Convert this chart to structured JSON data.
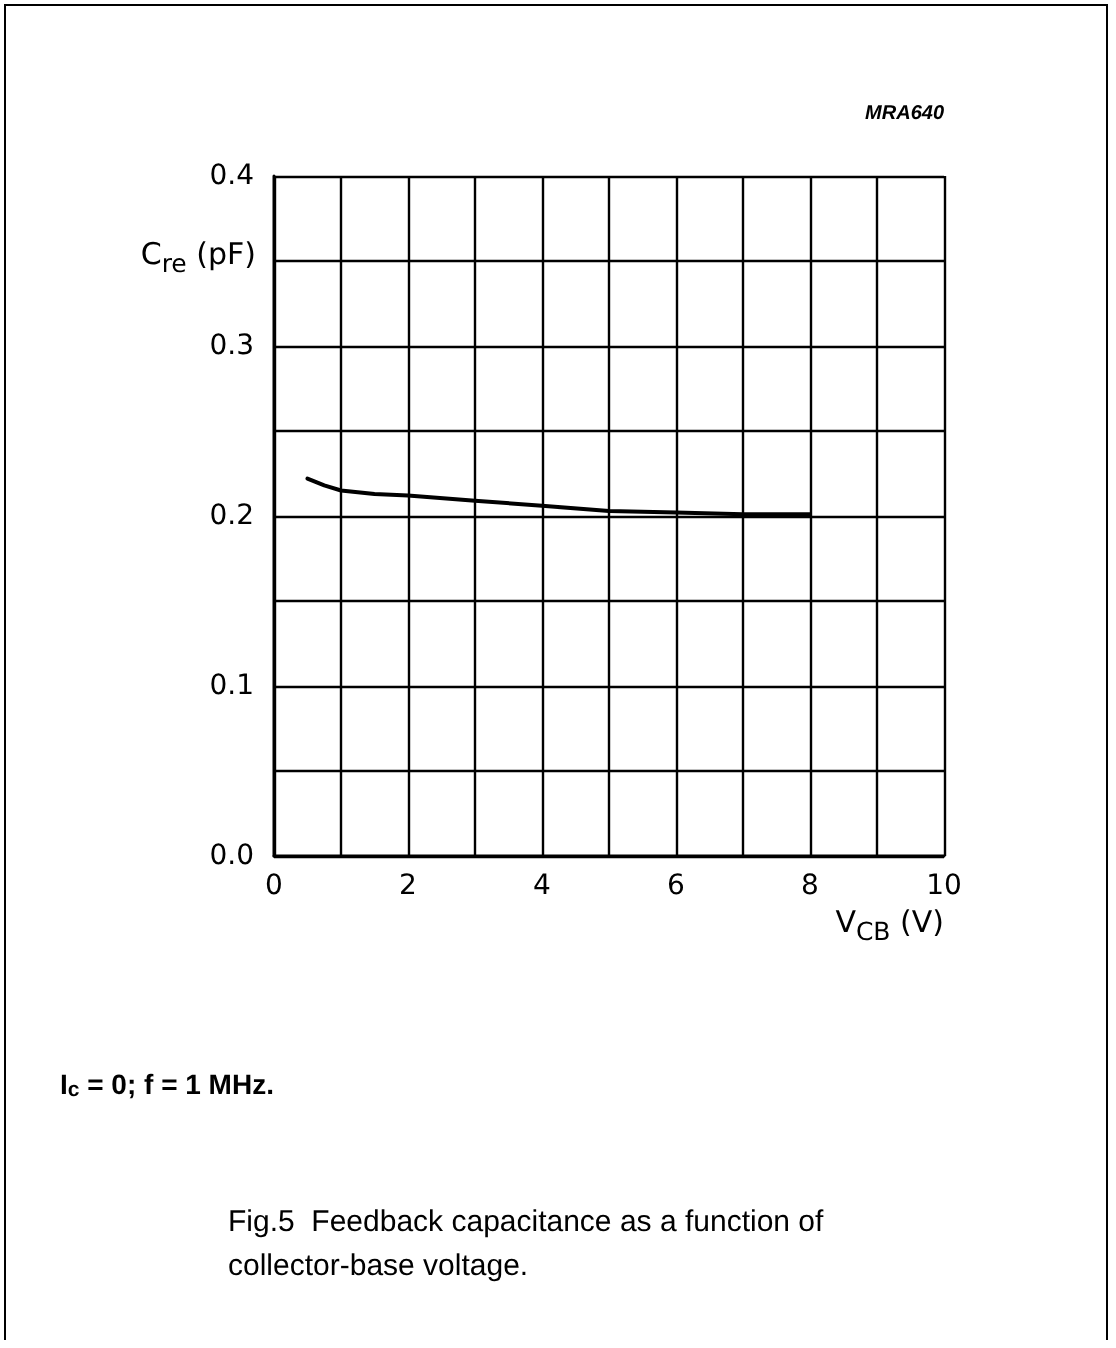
{
  "chart_data": {
    "type": "line",
    "xlabel": "V$_{CB}$ (V)",
    "ylabel": "C$_{re}$ (pF)",
    "x": [
      0.5,
      0.75,
      1,
      1.5,
      2,
      3,
      4,
      5,
      6,
      7,
      8
    ],
    "series": [
      {
        "color": "#000000",
        "values": [
          0.222,
          0.218,
          0.215,
          0.213,
          0.212,
          0.209,
          0.206,
          0.203,
          0.202,
          0.201,
          0.201
        ]
      }
    ],
    "xlim": [
      0,
      10
    ],
    "ylim": [
      0,
      0.4
    ],
    "xticks": [
      0,
      {
        "value": 1,
        "label": null
      },
      2,
      {
        "value": 3,
        "label": null
      },
      4,
      {
        "value": 5,
        "label": null
      },
      6,
      {
        "value": 7,
        "label": null
      },
      8,
      {
        "value": 9,
        "label": null
      },
      10
    ],
    "yticks": [
      {
        "value": 0,
        "label": "0.0"
      },
      {
        "value": 0.05,
        "label": null
      },
      0.1,
      {
        "value": 0.15,
        "label": null
      },
      0.2,
      {
        "value": 0.25,
        "label": null
      },
      0.3,
      {
        "value": 0.35,
        "label": null
      },
      0.4
    ],
    "grid": true,
    "marker": "none",
    "line_style": "solid",
    "annotations": [
      "MRA640",
      "I$_{c}$ = 0; f = 1 MHz.",
      "Fig.5  Feedback capacitance as a function of collector-base voltage."
    ]
  }
}
